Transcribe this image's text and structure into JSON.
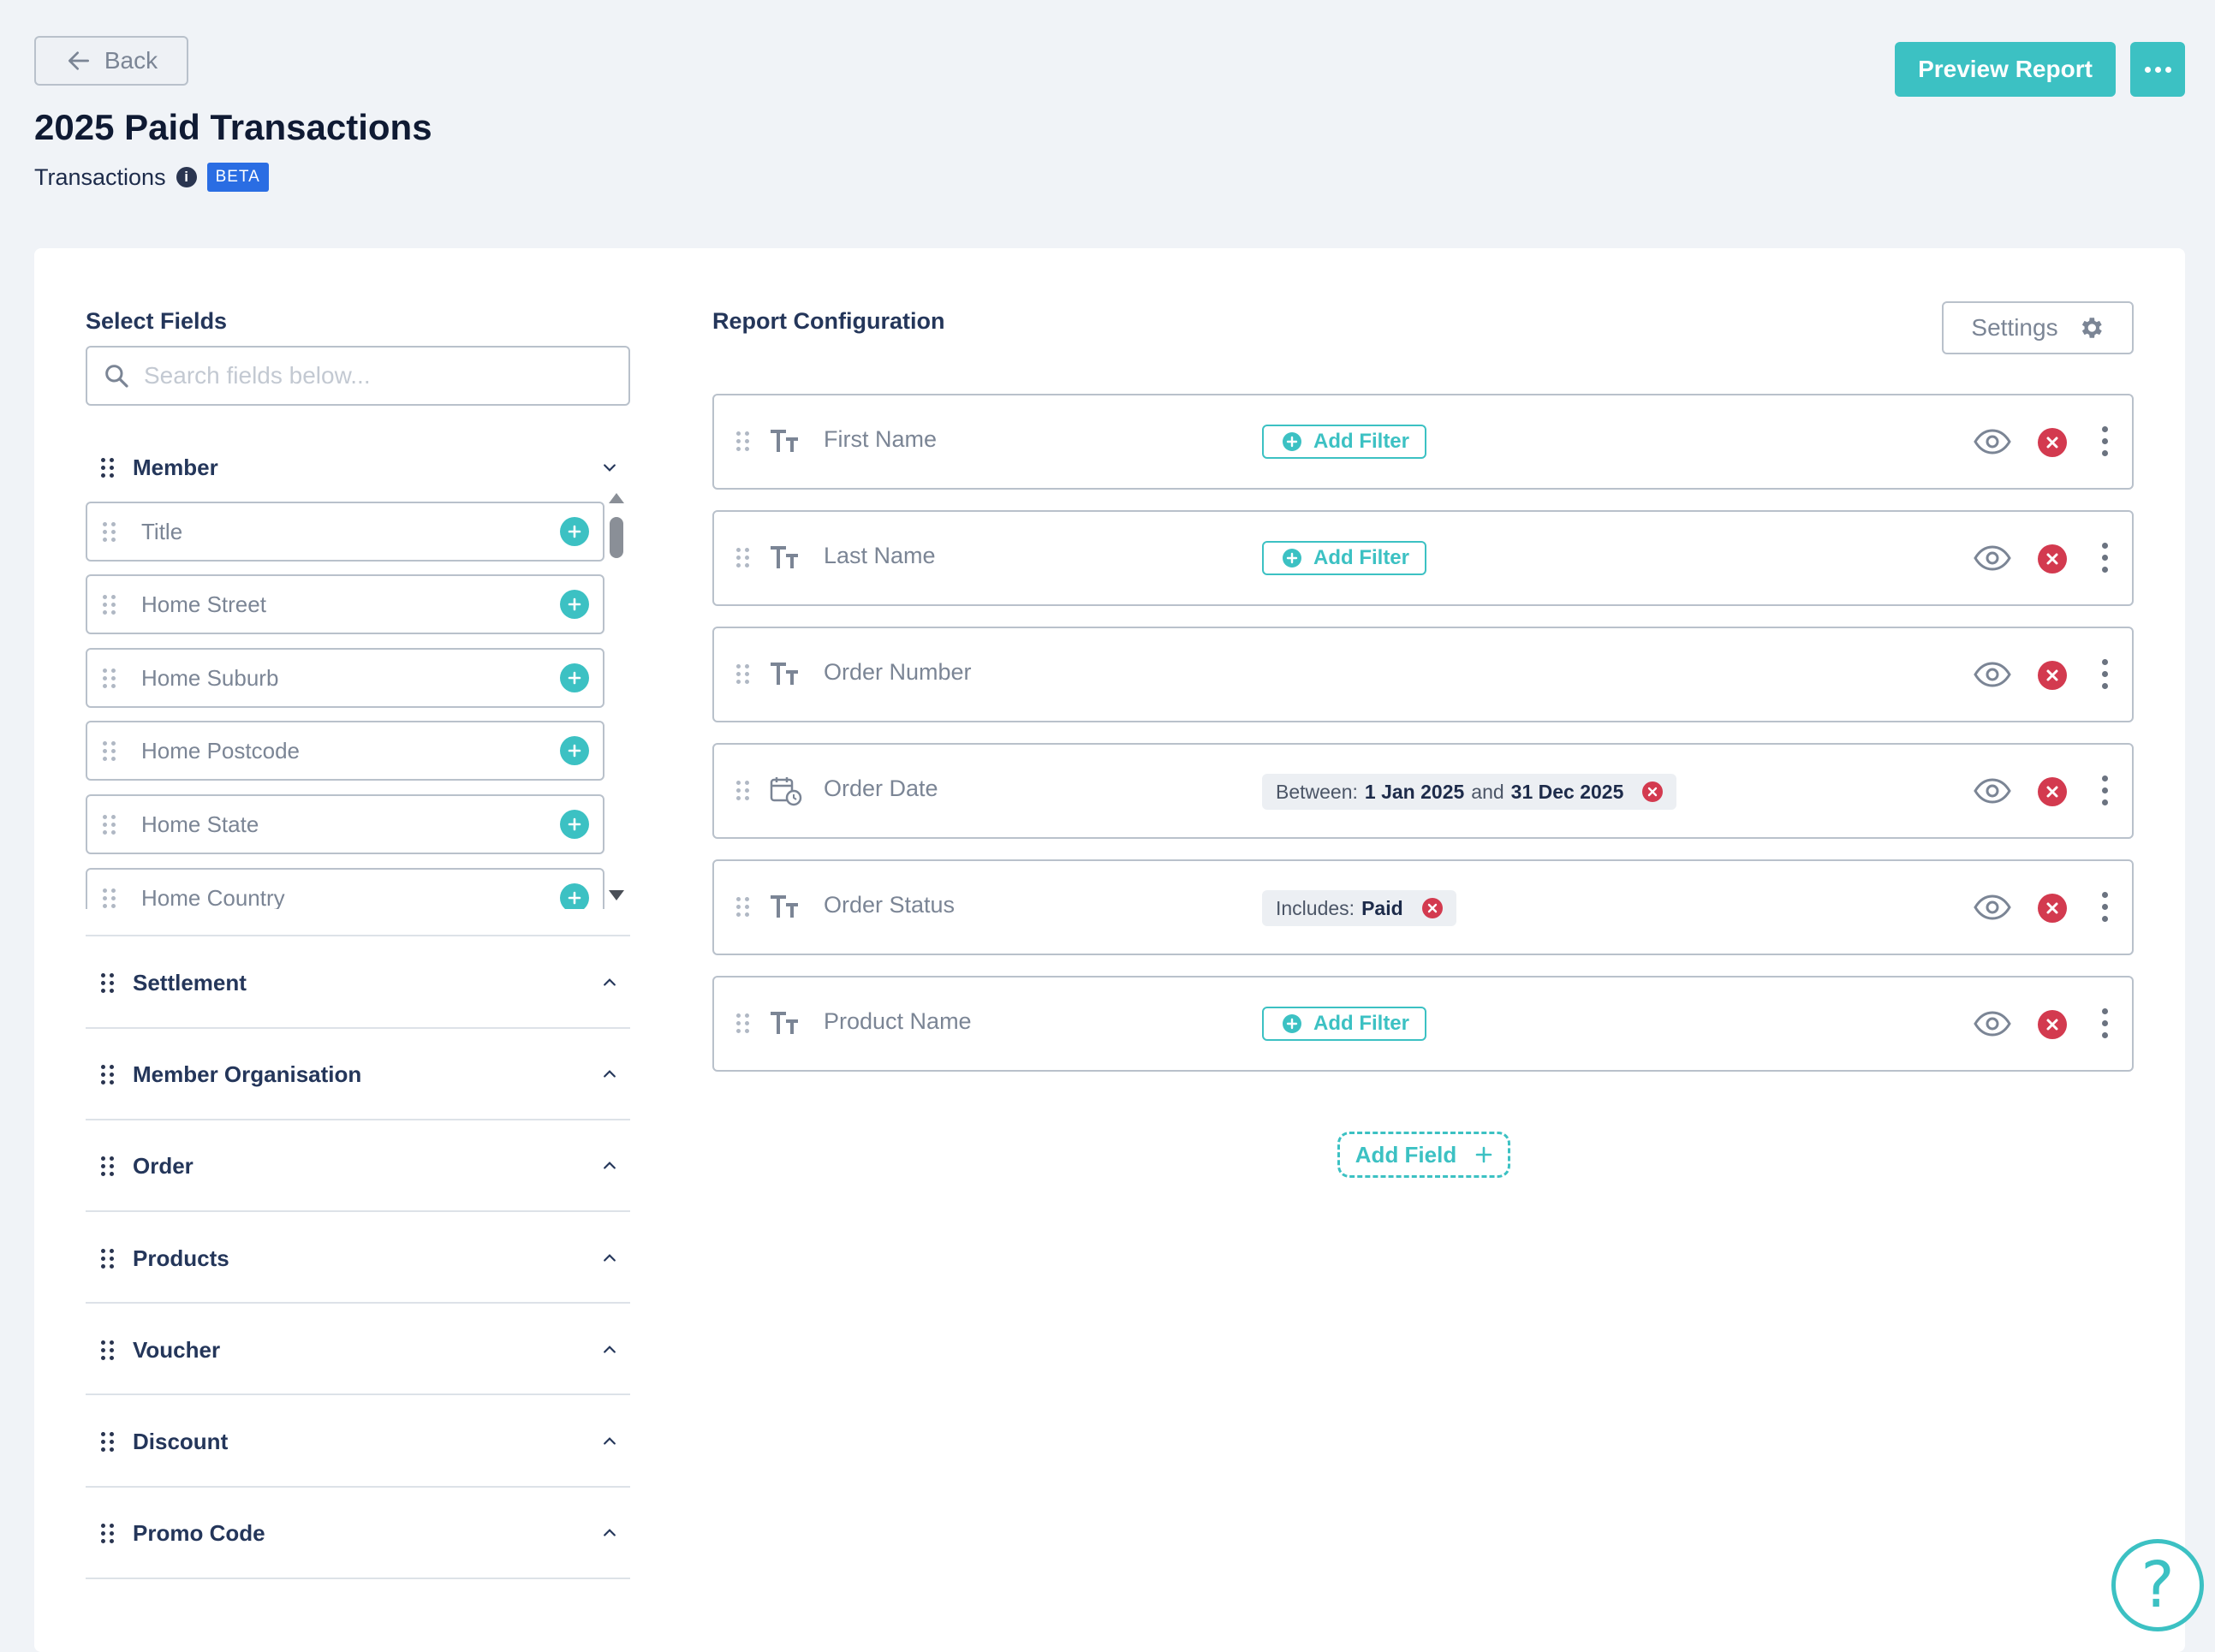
{
  "header": {
    "back_label": "Back",
    "title": "2025 Paid Transactions",
    "subtitle": "Transactions",
    "badge": "BETA",
    "preview_label": "Preview Report"
  },
  "select_fields": {
    "title": "Select Fields",
    "search_placeholder": "Search fields below...",
    "member_group": "Member",
    "member_fields": [
      "Title",
      "Home Street",
      "Home Suburb",
      "Home Postcode",
      "Home State",
      "Home Country"
    ],
    "other_groups": [
      "Settlement",
      "Member Organisation",
      "Order",
      "Products",
      "Voucher",
      "Discount",
      "Promo Code"
    ]
  },
  "report_config": {
    "title": "Report Configuration",
    "settings_label": "Settings",
    "add_filter_label": "Add Filter",
    "add_field_label": "Add Field",
    "rows": [
      {
        "name": "First Name",
        "type": "text-icon"
      },
      {
        "name": "Last Name",
        "type": "text-icon"
      },
      {
        "name": "Order Number",
        "type": "text-icon"
      },
      {
        "name": "Order Date",
        "type": "date-icon",
        "filter_prefix": "Between:",
        "filter_v1": "1 Jan 2025",
        "filter_mid": "and",
        "filter_v2": "31 Dec 2025"
      },
      {
        "name": "Order Status",
        "type": "text-icon",
        "filter_prefix": "Includes:",
        "filter_v1": "Paid"
      },
      {
        "name": "Product Name",
        "type": "text-icon"
      }
    ]
  },
  "colors": {
    "accent": "#3cc1c3",
    "danger": "#d33a4f",
    "badge": "#2a6de3"
  }
}
